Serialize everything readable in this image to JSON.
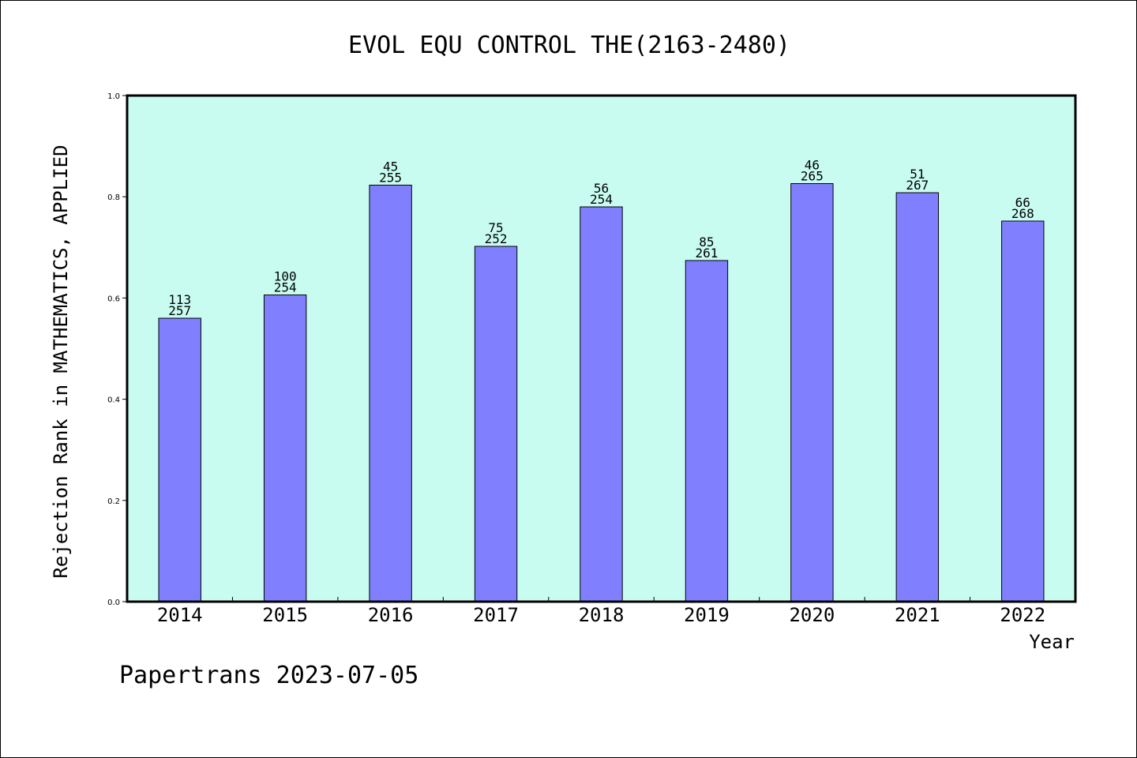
{
  "chart_data": {
    "type": "bar",
    "title": "EVOL EQU CONTROL THE(2163-2480)",
    "xlabel": "Year",
    "ylabel": "Rejection Rank in MATHEMATICS, APPLIED",
    "ylim": [
      0,
      1.0
    ],
    "yticks": [
      "0.0",
      "0.2",
      "0.4",
      "0.6",
      "0.8",
      "1.0"
    ],
    "categories": [
      "2014",
      "2015",
      "2016",
      "2017",
      "2018",
      "2019",
      "2020",
      "2021",
      "2022"
    ],
    "values": [
      0.56,
      0.606,
      0.823,
      0.702,
      0.78,
      0.674,
      0.826,
      0.808,
      0.752
    ],
    "labels_top": [
      "113",
      "100",
      "45",
      "75",
      "56",
      "85",
      "46",
      "51",
      "66"
    ],
    "labels_bottom": [
      "257",
      "254",
      "255",
      "252",
      "254",
      "261",
      "265",
      "267",
      "268"
    ],
    "grid": false,
    "legend": "none",
    "colors": {
      "plot_background": "#c8fcf0",
      "bar_fill": "#8080ff",
      "bar_stroke": "#000000"
    }
  },
  "footer": "Papertrans 2023-07-05"
}
